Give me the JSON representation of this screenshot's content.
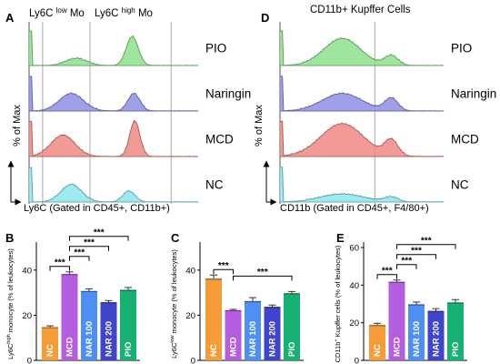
{
  "panels": {
    "A": {
      "letter": "A",
      "title_low": "Ly6C",
      "title_low_sup": "low",
      "title_low_tail": "Mo",
      "title_high": "Ly6C",
      "title_high_sup": "high",
      "title_high_tail": "Mo",
      "ylabel": "% of Max",
      "xlabel": "Ly6C (Gated in CD45+, CD11b+)"
    },
    "D": {
      "letter": "D",
      "title": "CD11b+ Kupffer Cells",
      "ylabel": "% of Max",
      "xlabel": "CD11b (Gated in CD45+, F4/80+)"
    },
    "B": {
      "letter": "B"
    },
    "C": {
      "letter": "C"
    },
    "E": {
      "letter": "E"
    }
  },
  "chart_data": [
    {
      "panel": "A",
      "type": "area",
      "subtype": "flow-cytometry-histogram-overlay",
      "tracks": [
        {
          "name": "PIO",
          "color": "#8de08d"
        },
        {
          "name": "Naringin",
          "color": "#8f8ee6"
        },
        {
          "name": "MCD",
          "color": "#f08a84"
        },
        {
          "name": "NC",
          "color": "#8ce8ee"
        }
      ]
    },
    {
      "panel": "D",
      "type": "area",
      "subtype": "flow-cytometry-histogram-overlay",
      "tracks": [
        {
          "name": "PIO",
          "color": "#8de08d"
        },
        {
          "name": "Naringin",
          "color": "#8f8ee6"
        },
        {
          "name": "MCD",
          "color": "#f08a84"
        },
        {
          "name": "NC",
          "color": "#8ce8ee"
        }
      ]
    },
    {
      "panel": "B",
      "type": "bar",
      "categories": [
        "NC",
        "MCD",
        "NAR 100",
        "NAR 200",
        "PIO"
      ],
      "values": [
        14.5,
        38,
        30.5,
        25.5,
        31
      ],
      "errors": [
        0.8,
        1.2,
        1.2,
        1.0,
        1.3
      ],
      "colors": [
        "#f59c38",
        "#b45de0",
        "#4d8ff5",
        "#3e44cc",
        "#17b273"
      ],
      "ylabel_sup": "high",
      "ylabel_head": "Ly6C",
      "ylabel_tail": " monocyte (% of leukocytes)",
      "ylim": [
        0,
        50
      ],
      "yticks": [
        0,
        20,
        40
      ],
      "significance": [
        {
          "from": 0,
          "to": 1,
          "label": "***"
        },
        {
          "from": 1,
          "to": 2,
          "label": "***"
        },
        {
          "from": 1,
          "to": 3,
          "label": "***"
        },
        {
          "from": 1,
          "to": 4,
          "label": "***"
        }
      ]
    },
    {
      "panel": "C",
      "type": "bar",
      "categories": [
        "NC",
        "MCD",
        "NAR 100",
        "NAR 200",
        "PIO"
      ],
      "values": [
        36,
        22,
        26,
        23.5,
        29.5
      ],
      "errors": [
        1.8,
        0.6,
        1.8,
        1.0,
        1.0
      ],
      "colors": [
        "#f59c38",
        "#b45de0",
        "#4d8ff5",
        "#3e44cc",
        "#17b273"
      ],
      "ylabel_sup": "low",
      "ylabel_head": "Ly6C",
      "ylabel_tail": " monocyte (% of leukocytes)",
      "ylim": [
        0,
        50
      ],
      "yticks": [
        0,
        20,
        40
      ],
      "significance": [
        {
          "from": 0,
          "to": 1,
          "label": "***"
        },
        {
          "from": 1,
          "to": 4,
          "label": "***"
        }
      ]
    },
    {
      "panel": "E",
      "type": "bar",
      "categories": [
        "NC",
        "MCD",
        "NAR 100",
        "NAR 200",
        "PIO"
      ],
      "values": [
        18.5,
        41.5,
        29.5,
        26,
        30.5
      ],
      "errors": [
        1.2,
        1.2,
        1.5,
        1.5,
        1.8
      ],
      "colors": [
        "#f59c38",
        "#b45de0",
        "#4d8ff5",
        "#3e44cc",
        "#17b273"
      ],
      "ylabel_sup": "+",
      "ylabel_head": "CD11b",
      "ylabel_tail": " Kupffer cells (% of leukocytes)",
      "ylim": [
        0,
        60
      ],
      "yticks": [
        0,
        20,
        40,
        60
      ],
      "significance": [
        {
          "from": 0,
          "to": 1,
          "label": "***"
        },
        {
          "from": 1,
          "to": 2,
          "label": "***"
        },
        {
          "from": 1,
          "to": 3,
          "label": "***"
        },
        {
          "from": 1,
          "to": 4,
          "label": "***"
        }
      ]
    }
  ]
}
